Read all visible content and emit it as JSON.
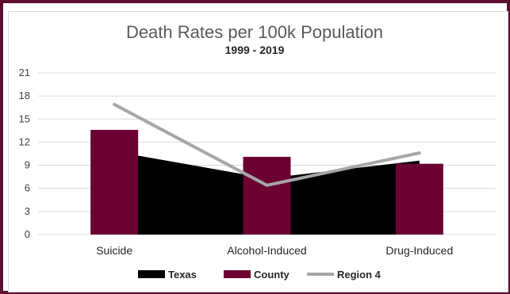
{
  "chart_data": {
    "type": "bar",
    "title": "Death Rates per 100k Population",
    "subtitle": "1999 - 2019",
    "categories": [
      "Suicide",
      "Alcohol-Induced",
      "Drug-Induced"
    ],
    "ylim": [
      0,
      21
    ],
    "yticks": [
      0,
      3,
      6,
      9,
      12,
      15,
      18,
      21
    ],
    "grid": true,
    "legend_position": "bottom",
    "series": [
      {
        "name": "Texas",
        "kind": "area",
        "color": "#000000",
        "values": [
          10.8,
          7.3,
          9.6
        ]
      },
      {
        "name": "County",
        "kind": "bar",
        "color": "#6b0033",
        "values": [
          13.6,
          10.1,
          9.2
        ]
      },
      {
        "name": "Region 4",
        "kind": "line",
        "color": "#a6a6a6",
        "values": [
          16.9,
          6.4,
          10.6
        ]
      }
    ]
  }
}
